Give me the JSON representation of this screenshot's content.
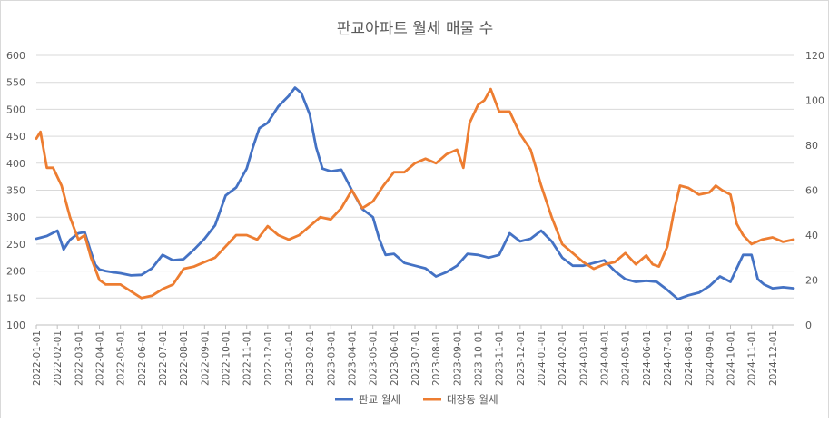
{
  "chart_data": {
    "type": "line",
    "title": "판교아파트 월세 매물 수",
    "xlabel": "",
    "ylabel_left": "",
    "ylabel_right": "",
    "x_ticks": [
      "2022-01-01",
      "2022-02-01",
      "2022-03-01",
      "2022-04-01",
      "2022-05-01",
      "2022-06-01",
      "2022-07-01",
      "2022-08-01",
      "2022-09-01",
      "2022-10-01",
      "2022-11-01",
      "2022-12-01",
      "2023-01-01",
      "2023-02-01",
      "2023-03-01",
      "2023-04-01",
      "2023-05-01",
      "2023-06-01",
      "2023-07-01",
      "2023-08-01",
      "2023-09-01",
      "2023-10-01",
      "2023-11-01",
      "2023-12-01",
      "2024-01-01",
      "2024-02-01",
      "2024-03-01",
      "2024-04-01",
      "2024-05-01",
      "2024-06-01",
      "2024-07-01",
      "2024-08-01",
      "2024-09-01",
      "2024-10-01",
      "2024-11-01",
      "2024-12-01"
    ],
    "x_range": [
      0,
      36
    ],
    "ylim_left": [
      100,
      600
    ],
    "yticks_left": [
      100,
      150,
      200,
      250,
      300,
      350,
      400,
      450,
      500,
      550,
      600
    ],
    "ylim_right": [
      0,
      120
    ],
    "yticks_right": [
      0,
      20,
      40,
      60,
      80,
      100,
      120
    ],
    "grid": true,
    "legend_position": "bottom",
    "series": [
      {
        "name": "판교 월세",
        "axis": "left",
        "color": "#4472C4",
        "x": [
          0,
          0.5,
          1,
          1.3,
          1.6,
          2,
          2.3,
          2.6,
          2.8,
          3,
          3.3,
          3.6,
          4,
          4.5,
          5,
          5.5,
          6,
          6.5,
          7,
          7.5,
          8,
          8.5,
          9,
          9.5,
          10,
          10.3,
          10.6,
          11,
          11.5,
          12,
          12.3,
          12.6,
          13,
          13.3,
          13.6,
          14,
          14.5,
          15,
          15.5,
          16,
          16.3,
          16.6,
          17,
          17.5,
          18,
          18.5,
          19,
          19.5,
          20,
          20.5,
          21,
          21.5,
          22,
          22.5,
          23,
          23.5,
          24,
          24.5,
          25,
          25.5,
          26,
          26.5,
          27,
          27.5,
          28,
          28.5,
          29,
          29.5,
          30,
          30.5,
          31,
          31.5,
          32,
          32.5,
          33,
          33.3,
          33.6,
          34,
          34.3,
          34.6,
          35,
          35.5,
          36
        ],
        "values": [
          260,
          265,
          275,
          240,
          258,
          270,
          272,
          235,
          212,
          203,
          200,
          198,
          196,
          192,
          193,
          205,
          230,
          220,
          222,
          240,
          260,
          285,
          340,
          355,
          390,
          430,
          465,
          475,
          505,
          525,
          540,
          530,
          490,
          430,
          390,
          385,
          388,
          350,
          315,
          300,
          260,
          230,
          232,
          215,
          210,
          205,
          190,
          198,
          210,
          232,
          230,
          225,
          230,
          270,
          255,
          260,
          275,
          255,
          225,
          210,
          210,
          215,
          220,
          200,
          185,
          180,
          182,
          180,
          165,
          148,
          155,
          160,
          172,
          190,
          180,
          205,
          230,
          230,
          185,
          175,
          168,
          170,
          168
        ]
      },
      {
        "name": "대장동 월세",
        "axis": "right",
        "color": "#ED7D31",
        "x": [
          0,
          0.2,
          0.5,
          0.8,
          1.2,
          1.6,
          2,
          2.3,
          2.6,
          3,
          3.3,
          3.6,
          4,
          4.5,
          5,
          5.5,
          6,
          6.5,
          7,
          7.5,
          8,
          8.5,
          9,
          9.5,
          10,
          10.5,
          11,
          11.5,
          12,
          12.5,
          13,
          13.5,
          14,
          14.5,
          15,
          15.5,
          16,
          16.5,
          17,
          17.5,
          18,
          18.5,
          19,
          19.5,
          20,
          20.3,
          20.6,
          21,
          21.3,
          21.6,
          22,
          22.5,
          23,
          23.5,
          24,
          24.5,
          25,
          25.5,
          26,
          26.5,
          27,
          27.5,
          28,
          28.5,
          29,
          29.3,
          29.6,
          30,
          30.3,
          30.6,
          31,
          31.5,
          32,
          32.3,
          32.6,
          33,
          33.3,
          33.6,
          34,
          34.5,
          35,
          35.5,
          36
        ],
        "values": [
          83,
          86,
          70,
          70,
          62,
          48,
          38,
          40,
          30,
          20,
          18,
          18,
          18,
          15,
          12,
          13,
          16,
          18,
          25,
          26,
          28,
          30,
          35,
          40,
          40,
          38,
          44,
          40,
          38,
          40,
          44,
          48,
          47,
          52,
          60,
          52,
          55,
          62,
          68,
          68,
          72,
          74,
          72,
          76,
          78,
          70,
          90,
          98,
          100,
          105,
          95,
          95,
          85,
          78,
          62,
          48,
          36,
          32,
          28,
          25,
          27,
          28,
          32,
          27,
          31,
          27,
          26,
          35,
          50,
          62,
          61,
          58,
          59,
          62,
          60,
          58,
          45,
          40,
          36,
          38,
          39,
          37,
          38
        ]
      }
    ]
  }
}
